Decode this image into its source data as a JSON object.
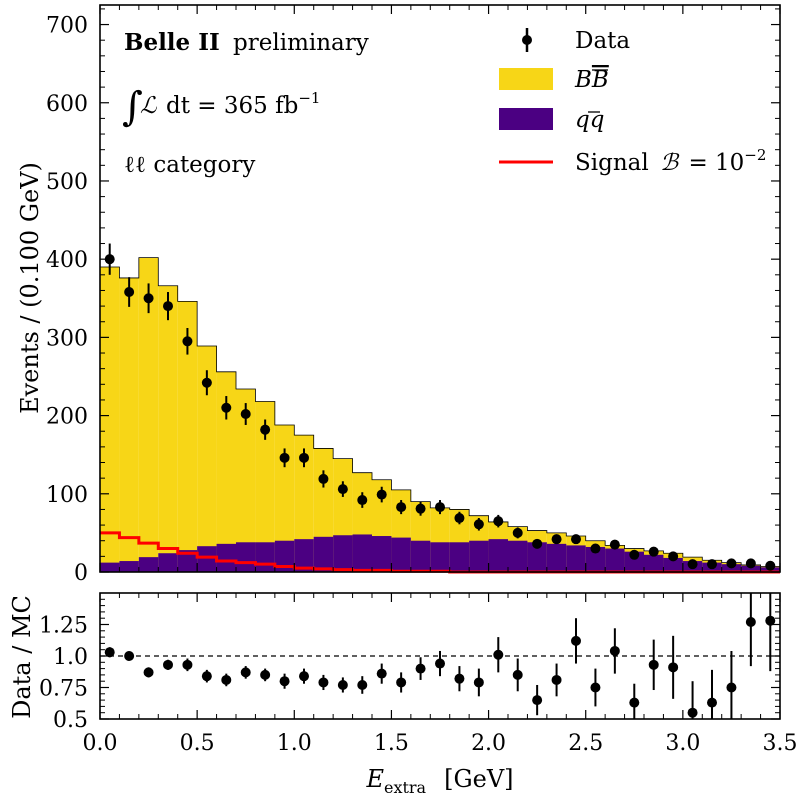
{
  "chart_data": [
    {
      "type": "histogram",
      "panel": "main",
      "xlabel": "E_extra [GeV]",
      "ylabel": "Events / (0.100 GeV)",
      "xlim": [
        0.0,
        3.5
      ],
      "ylim": [
        0,
        725
      ],
      "yticks": [
        0,
        100,
        200,
        300,
        400,
        500,
        600,
        700
      ],
      "bin_edges": [
        0.0,
        0.1,
        0.2,
        0.3,
        0.4,
        0.5,
        0.6,
        0.7,
        0.8,
        0.9,
        1.0,
        1.1,
        1.2,
        1.3,
        1.4,
        1.5,
        1.6,
        1.7,
        1.8,
        1.9,
        2.0,
        2.1,
        2.2,
        2.3,
        2.4,
        2.5,
        2.6,
        2.7,
        2.8,
        2.9,
        3.0,
        3.1,
        3.2,
        3.3,
        3.4,
        3.5
      ],
      "series": [
        {
          "name": "BB̄",
          "kind": "stack-total",
          "color": "#f7d617",
          "values": [
            390,
            376,
            402,
            366,
            346,
            289,
            256,
            234,
            218,
            188,
            175,
            158,
            145,
            127,
            118,
            105,
            90,
            82,
            80,
            72,
            64,
            58,
            53,
            50,
            46,
            40,
            34,
            30,
            27,
            24,
            19,
            15,
            12,
            9,
            7
          ]
        },
        {
          "name": "qq̄",
          "kind": "stack-bottom",
          "color": "#4b0082",
          "values": [
            12,
            14,
            19,
            24,
            28,
            33,
            36,
            38,
            38,
            40,
            42,
            45,
            47,
            48,
            46,
            44,
            40,
            38,
            38,
            40,
            42,
            40,
            38,
            36,
            34,
            32,
            30,
            26,
            22,
            18,
            14,
            12,
            10,
            8,
            6
          ]
        },
        {
          "name": "Signal B = 10^-2",
          "kind": "line",
          "color": "#ff0000",
          "values": [
            50,
            44,
            37,
            30,
            24,
            19,
            14,
            12,
            10,
            7,
            5,
            4,
            3,
            2,
            2,
            1,
            1,
            1,
            0,
            0,
            0,
            0,
            0,
            0,
            0,
            0,
            0,
            0,
            0,
            0,
            0,
            0,
            0,
            0,
            0
          ]
        },
        {
          "name": "Data",
          "kind": "points",
          "color": "#000000",
          "x": [
            0.05,
            0.15,
            0.25,
            0.35,
            0.45,
            0.55,
            0.65,
            0.75,
            0.85,
            0.95,
            1.05,
            1.15,
            1.25,
            1.35,
            1.45,
            1.55,
            1.65,
            1.75,
            1.85,
            1.95,
            2.05,
            2.15,
            2.25,
            2.35,
            2.45,
            2.55,
            2.65,
            2.75,
            2.85,
            2.95,
            3.05,
            3.15,
            3.25,
            3.35,
            3.45
          ],
          "values": [
            400,
            358,
            350,
            340,
            295,
            242,
            210,
            202,
            182,
            146,
            146,
            119,
            106,
            92,
            99,
            83,
            81,
            83,
            69,
            61,
            65,
            50,
            36,
            42,
            42,
            30,
            35,
            22,
            26,
            20,
            10,
            10,
            11,
            11,
            8
          ],
          "errors": [
            20,
            19,
            19,
            18,
            17,
            16,
            15,
            14,
            13,
            12,
            12,
            11,
            10,
            10,
            10,
            9,
            9,
            9,
            8,
            8,
            8,
            7,
            6,
            6,
            6,
            5,
            6,
            5,
            5,
            4,
            3,
            3,
            3,
            3,
            3
          ]
        }
      ],
      "legend": {
        "placement": "top-right",
        "entries": [
          "Data",
          "BB̄",
          "qq̄",
          "Signal B = 10^-2"
        ]
      },
      "annotations": [
        "Belle II preliminary",
        "∫L dt = 365 fb⁻¹",
        "ℓℓ category"
      ]
    },
    {
      "type": "scatter",
      "panel": "ratio",
      "xlabel": "E_extra [GeV]",
      "ylabel": "Data / MC",
      "xlim": [
        0.0,
        3.5
      ],
      "ylim": [
        0.5,
        1.5
      ],
      "yticks": [
        0.5,
        0.75,
        1.0,
        1.25
      ],
      "xticks": [
        0.0,
        0.5,
        1.0,
        1.5,
        2.0,
        2.5,
        3.0,
        3.5
      ],
      "reference_line": 1.0,
      "x": [
        0.05,
        0.15,
        0.25,
        0.35,
        0.45,
        0.55,
        0.65,
        0.75,
        0.85,
        0.95,
        1.05,
        1.15,
        1.25,
        1.35,
        1.45,
        1.55,
        1.65,
        1.75,
        1.85,
        1.95,
        2.05,
        2.15,
        2.25,
        2.35,
        2.45,
        2.55,
        2.65,
        2.75,
        2.85,
        2.95,
        3.05,
        3.15,
        3.25,
        3.35,
        3.45
      ],
      "values": [
        1.03,
        1.0,
        0.87,
        0.93,
        0.93,
        0.84,
        0.81,
        0.87,
        0.85,
        0.8,
        0.84,
        0.79,
        0.77,
        0.77,
        0.86,
        0.79,
        0.9,
        0.94,
        0.82,
        0.79,
        1.01,
        0.85,
        0.65,
        0.81,
        1.12,
        0.75,
        1.04,
        0.63,
        0.93,
        0.91,
        0.55,
        0.63,
        0.75,
        1.27,
        1.28
      ],
      "errors": [
        0.04,
        0.03,
        0.04,
        0.04,
        0.05,
        0.05,
        0.05,
        0.05,
        0.05,
        0.06,
        0.06,
        0.06,
        0.06,
        0.07,
        0.08,
        0.08,
        0.09,
        0.1,
        0.1,
        0.11,
        0.14,
        0.13,
        0.12,
        0.13,
        0.18,
        0.15,
        0.18,
        0.15,
        0.2,
        0.25,
        0.25,
        0.26,
        0.29,
        0.35,
        0.4
      ]
    }
  ],
  "text": {
    "annotation_experiment": "Belle II",
    "annotation_status": "preliminary",
    "annotation_lumi": "dt = 365 fb",
    "annotation_lumi_exp": "−1",
    "annotation_category": "ℓℓ category",
    "legend_data": "Data",
    "legend_bb": "B",
    "legend_bb_bar": "B",
    "legend_qq": "q",
    "legend_qq_bar": "q",
    "legend_signal": "Signal",
    "legend_signal_eq": "= 10",
    "legend_signal_exp": "−2",
    "ylabel_main": "Events / (0.100 GeV)",
    "ylabel_ratio": "Data / MC",
    "xlabel_main": "E",
    "xlabel_sub": "extra",
    "xlabel_unit": "[GeV]"
  }
}
